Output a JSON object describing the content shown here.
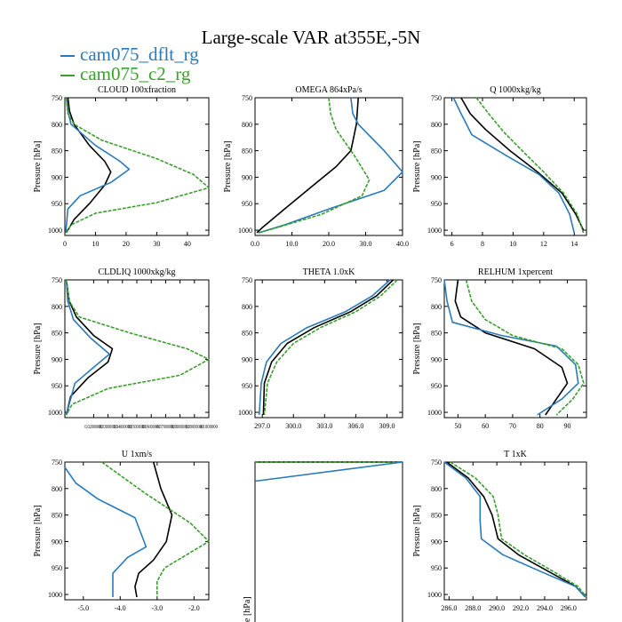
{
  "figure": {
    "title": "Large-scale VAR at355E,-5N",
    "legend": [
      {
        "name": "cam075_dflt_rg",
        "color": "#2a7ab9"
      },
      {
        "name": "cam075_c2_rg",
        "color": "#3a9e2c"
      }
    ]
  },
  "colors": {
    "dflt": "#2a7ab9",
    "c2": "#3a9e2c",
    "obs": "#000000"
  },
  "chart_data": [
    {
      "type": "line",
      "title": "CLOUD  100xfraction",
      "ylabel": "Pressure [hPa]",
      "xlim": [
        0,
        47
      ],
      "ylim": [
        750,
        1010
      ],
      "y_inverted": true,
      "xticks": [
        0,
        10,
        20,
        30,
        40
      ],
      "xticklabels": [
        "0",
        "10",
        "20",
        "30",
        "40"
      ],
      "yticks": [
        750,
        800,
        850,
        900,
        950,
        1000
      ],
      "yticklabels": [
        "750",
        "800",
        "850",
        "900",
        "950",
        "1000"
      ],
      "series": [
        {
          "color": "#000000",
          "dash": false,
          "x": [
            1,
            1.5,
            3,
            8,
            13,
            15,
            13,
            8,
            3,
            0.5
          ],
          "y": [
            750,
            775,
            800,
            840,
            870,
            890,
            915,
            950,
            980,
            1005
          ]
        },
        {
          "color": "#2a7ab9",
          "dash": false,
          "x": [
            0.5,
            1,
            2,
            10,
            18,
            21,
            15,
            5,
            1,
            0.3
          ],
          "y": [
            750,
            775,
            800,
            840,
            870,
            885,
            910,
            935,
            960,
            1005
          ]
        },
        {
          "color": "#3a9e2c",
          "dash": true,
          "x": [
            0.5,
            1,
            3,
            12,
            30,
            42,
            47,
            30,
            10,
            2,
            0.5
          ],
          "y": [
            750,
            780,
            800,
            830,
            865,
            895,
            920,
            948,
            968,
            990,
            1005
          ]
        }
      ]
    },
    {
      "type": "line",
      "title": "OMEGA  864xPa/s",
      "ylabel": "Pressure [hPa]",
      "xlim": [
        0,
        40
      ],
      "ylim": [
        750,
        1010
      ],
      "y_inverted": true,
      "xticks": [
        0,
        10,
        20,
        30,
        40
      ],
      "xticklabels": [
        "0.0",
        "10.0",
        "20.0",
        "30.0",
        "40.0"
      ],
      "yticks": [
        750,
        800,
        850,
        900,
        950,
        1000
      ],
      "yticklabels": [
        "750",
        "800",
        "850",
        "900",
        "950",
        "1000"
      ],
      "series": [
        {
          "color": "#000000",
          "dash": false,
          "x": [
            28,
            27.5,
            26,
            22,
            15,
            8,
            2,
            0.5
          ],
          "y": [
            750,
            800,
            850,
            880,
            920,
            960,
            995,
            1005
          ]
        },
        {
          "color": "#2a7ab9",
          "dash": false,
          "x": [
            26,
            26.5,
            28,
            35,
            40,
            35,
            20,
            8,
            1
          ],
          "y": [
            750,
            780,
            800,
            850,
            890,
            925,
            960,
            990,
            1005
          ]
        },
        {
          "color": "#3a9e2c",
          "dash": true,
          "x": [
            20,
            20.5,
            22,
            27,
            31,
            29,
            18,
            6,
            1
          ],
          "y": [
            750,
            780,
            810,
            860,
            905,
            935,
            970,
            995,
            1005
          ]
        }
      ]
    },
    {
      "type": "line",
      "title": "Q  1000xkg/kg",
      "ylabel": "Pressure [hPa]",
      "xlim": [
        5.5,
        14.8
      ],
      "ylim": [
        750,
        1010
      ],
      "y_inverted": true,
      "xticks": [
        6,
        8,
        10,
        12,
        14
      ],
      "xticklabels": [
        "6",
        "8",
        "10",
        "12",
        "14"
      ],
      "yticks": [
        750,
        800,
        850,
        900,
        950,
        1000
      ],
      "yticklabels": [
        "750",
        "800",
        "850",
        "900",
        "950",
        "1000"
      ],
      "series": [
        {
          "color": "#000000",
          "dash": false,
          "x": [
            6.6,
            7.2,
            8.2,
            9.8,
            11.6,
            13.2,
            14.1,
            14.6
          ],
          "y": [
            750,
            780,
            810,
            850,
            890,
            930,
            970,
            1000
          ]
        },
        {
          "color": "#2a7ab9",
          "dash": false,
          "x": [
            6.1,
            6.6,
            7.3,
            9.6,
            11.7,
            13.0,
            13.7,
            14.0
          ],
          "y": [
            750,
            780,
            820,
            860,
            895,
            930,
            970,
            1005
          ]
        },
        {
          "color": "#3a9e2c",
          "dash": true,
          "x": [
            7.6,
            8.4,
            9.4,
            10.6,
            12.0,
            13.3,
            14.2,
            14.6
          ],
          "y": [
            750,
            780,
            815,
            850,
            890,
            930,
            970,
            1005
          ]
        }
      ]
    },
    {
      "type": "line",
      "title": "CLDLIQ  1000xkg/kg",
      "ylabel": "Pressure [hPa]",
      "xlim": [
        0,
        0.1
      ],
      "ylim": [
        750,
        1010
      ],
      "y_inverted": true,
      "xticks": [
        0.02,
        0.03,
        0.04,
        0.05,
        0.06,
        0.07,
        0.08,
        0.09,
        0.1
      ],
      "xticklabels": [
        "0.02000000",
        "0.03000000",
        "0.04000000",
        "0.05000000",
        "0.06000000",
        "0.07000000",
        "0.08000000",
        "0.09000000",
        "0.1000000"
      ],
      "yticks": [
        750,
        800,
        850,
        900,
        950,
        1000
      ],
      "yticklabels": [
        "750",
        "800",
        "850",
        "900",
        "950",
        "1000"
      ],
      "series": [
        {
          "color": "#000000",
          "dash": false,
          "x": [
            0.001,
            0.003,
            0.008,
            0.02,
            0.033,
            0.03,
            0.016,
            0.004,
            0.001
          ],
          "y": [
            750,
            790,
            820,
            855,
            880,
            905,
            935,
            970,
            1005
          ]
        },
        {
          "color": "#2a7ab9",
          "dash": false,
          "x": [
            0.001,
            0.002,
            0.006,
            0.018,
            0.031,
            0.02,
            0.007,
            0.001
          ],
          "y": [
            750,
            790,
            825,
            860,
            890,
            915,
            945,
            1005
          ]
        },
        {
          "color": "#3a9e2c",
          "dash": true,
          "x": [
            0.001,
            0.003,
            0.01,
            0.045,
            0.085,
            0.1,
            0.08,
            0.03,
            0.005,
            0.001
          ],
          "y": [
            750,
            790,
            820,
            850,
            880,
            900,
            930,
            955,
            985,
            1005
          ]
        }
      ]
    },
    {
      "type": "line",
      "title": "THETA  1.0xK",
      "ylabel": "",
      "xlim": [
        296.3,
        310.5
      ],
      "ylim": [
        750,
        1010
      ],
      "y_inverted": true,
      "xticks": [
        297,
        300,
        303,
        306,
        309
      ],
      "xticklabels": [
        "297.0",
        "300.0",
        "303.0",
        "306.0",
        "309.0"
      ],
      "yticks": [
        750,
        800,
        850,
        900,
        950,
        1000
      ],
      "yticklabels": [
        "750",
        "800",
        "850",
        "900",
        "950",
        "1000"
      ],
      "series": [
        {
          "color": "#000000",
          "dash": false,
          "x": [
            309.6,
            308.0,
            305.5,
            302.0,
            299.4,
            297.9,
            297.2,
            297.1
          ],
          "y": [
            750,
            780,
            810,
            840,
            870,
            905,
            945,
            1005
          ]
        },
        {
          "color": "#2a7ab9",
          "dash": false,
          "x": [
            309.3,
            307.6,
            305.0,
            301.3,
            298.8,
            297.4,
            296.9,
            296.7
          ],
          "y": [
            750,
            780,
            810,
            840,
            870,
            905,
            945,
            1005
          ]
        },
        {
          "color": "#3a9e2c",
          "dash": true,
          "x": [
            310.0,
            308.4,
            306.0,
            302.6,
            300.0,
            298.4,
            297.5,
            297.2
          ],
          "y": [
            750,
            780,
            810,
            840,
            870,
            905,
            945,
            1005
          ]
        }
      ]
    },
    {
      "type": "line",
      "title": "RELHUM  1xpercent",
      "ylabel": "Pressure [hPa]",
      "xlim": [
        45,
        97
      ],
      "ylim": [
        750,
        1010
      ],
      "y_inverted": true,
      "xticks": [
        50,
        60,
        70,
        80,
        90
      ],
      "xticklabels": [
        "50",
        "60",
        "70",
        "80",
        "90"
      ],
      "yticks": [
        750,
        800,
        850,
        900,
        950,
        1000
      ],
      "yticklabels": [
        "750",
        "800",
        "850",
        "900",
        "950",
        "1000"
      ],
      "series": [
        {
          "color": "#000000",
          "dash": false,
          "x": [
            50,
            49,
            51,
            60,
            78,
            88,
            90,
            86,
            82
          ],
          "y": [
            750,
            790,
            820,
            850,
            880,
            915,
            945,
            975,
            1005
          ]
        },
        {
          "color": "#2a7ab9",
          "dash": false,
          "x": [
            45,
            46,
            48,
            66,
            86,
            93,
            94,
            88,
            79
          ],
          "y": [
            750,
            790,
            830,
            855,
            875,
            910,
            945,
            975,
            1005
          ]
        },
        {
          "color": "#3a9e2c",
          "dash": true,
          "x": [
            53,
            55,
            60,
            70,
            88,
            94,
            96,
            92,
            86
          ],
          "y": [
            750,
            790,
            825,
            855,
            880,
            910,
            945,
            975,
            1005
          ]
        }
      ]
    },
    {
      "type": "line",
      "title": "U  1xm/s",
      "ylabel": "Pressure [hPa]",
      "xlim": [
        -5.5,
        -1.6
      ],
      "ylim": [
        750,
        1010
      ],
      "y_inverted": true,
      "xticks": [
        -5,
        -4,
        -3,
        -2
      ],
      "xticklabels": [
        "-5.0",
        "-4.0",
        "-3.0",
        "-2.0"
      ],
      "yticks": [
        750,
        800,
        850,
        900,
        950,
        1000
      ],
      "yticklabels": [
        "750",
        "800",
        "850",
        "900",
        "950",
        "1000"
      ],
      "series": [
        {
          "color": "#000000",
          "dash": false,
          "x": [
            -3.1,
            -2.9,
            -2.6,
            -2.75,
            -3.1,
            -3.5,
            -3.6,
            -3.55
          ],
          "y": [
            750,
            800,
            850,
            900,
            935,
            960,
            985,
            1005
          ]
        },
        {
          "color": "#2a7ab9",
          "dash": false,
          "x": [
            -5.5,
            -5.2,
            -4.6,
            -3.6,
            -3.3,
            -3.8,
            -4.2,
            -4.2
          ],
          "y": [
            760,
            790,
            820,
            855,
            910,
            930,
            960,
            1005
          ]
        },
        {
          "color": "#3a9e2c",
          "dash": true,
          "x": [
            -4.5,
            -4.0,
            -3.3,
            -2.1,
            -1.6,
            -2.2,
            -2.8,
            -3.0,
            -3.0
          ],
          "y": [
            750,
            775,
            810,
            865,
            900,
            925,
            950,
            975,
            1005
          ]
        }
      ]
    },
    {
      "type": "line",
      "title": "",
      "ylabel": "",
      "xlim": [
        0,
        1
      ],
      "ylim": [
        750,
        1010
      ],
      "y_inverted": true,
      "xticks": [],
      "xticklabels": [],
      "yticks": [],
      "yticklabels": [],
      "series": [
        {
          "color": "#000000",
          "dash": false,
          "x": [
            0,
            1
          ],
          "y": [
            750,
            750
          ]
        },
        {
          "color": "#3a9e2c",
          "dash": true,
          "x": [
            0,
            1
          ],
          "y": [
            750,
            750
          ]
        },
        {
          "color": "#2a7ab9",
          "dash": false,
          "x": [
            0,
            1
          ],
          "y": [
            778,
            750
          ]
        }
      ]
    },
    {
      "type": "line",
      "title": "T  1xK",
      "ylabel": "Pressure [hPa]",
      "xlim": [
        285.6,
        297.5
      ],
      "ylim": [
        750,
        1010
      ],
      "y_inverted": true,
      "xticks": [
        286,
        288,
        290,
        292,
        294,
        296
      ],
      "xticklabels": [
        "286.0",
        "288.0",
        "290.0",
        "292.0",
        "294.0",
        "296.0"
      ],
      "yticks": [
        750,
        800,
        850,
        900,
        950,
        1000
      ],
      "yticklabels": [
        "750",
        "800",
        "850",
        "900",
        "950",
        "1000"
      ],
      "series": [
        {
          "color": "#000000",
          "dash": false,
          "x": [
            285.8,
            287.6,
            288.9,
            289.6,
            290.1,
            291.8,
            294.2,
            296.6,
            297.4
          ],
          "y": [
            750,
            780,
            815,
            850,
            895,
            925,
            955,
            985,
            1005
          ]
        },
        {
          "color": "#2a7ab9",
          "dash": false,
          "x": [
            285.6,
            287.4,
            288.6,
            288.6,
            288.7,
            290.5,
            293.5,
            296.6,
            297.4
          ],
          "y": [
            750,
            780,
            815,
            860,
            895,
            925,
            955,
            985,
            1005
          ]
        },
        {
          "color": "#3a9e2c",
          "dash": true,
          "x": [
            286.1,
            288.2,
            289.7,
            290.1,
            290.4,
            292.3,
            294.6,
            296.8,
            297.5
          ],
          "y": [
            750,
            780,
            815,
            850,
            895,
            925,
            955,
            985,
            1005
          ]
        }
      ]
    }
  ]
}
